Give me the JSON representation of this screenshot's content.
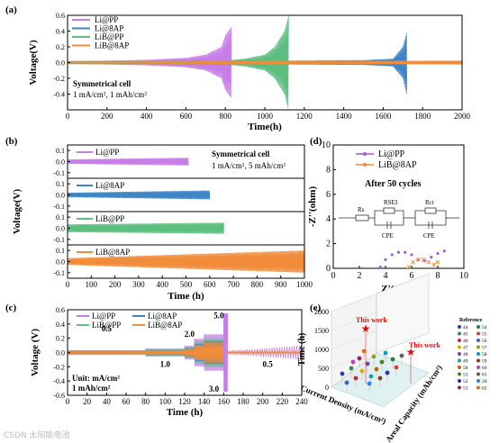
{
  "chart_data": [
    {
      "panel": "(a)",
      "type": "line",
      "title": "",
      "xlabel": "Time(h)",
      "ylabel": "Voltage(V)",
      "xlim": [
        0,
        2000
      ],
      "ylim": [
        -0.6,
        0.6
      ],
      "xticks": [
        0,
        200,
        400,
        600,
        800,
        1000,
        1200,
        1400,
        1600,
        1800,
        2000
      ],
      "yticks": [
        -0.4,
        -0.2,
        0.0,
        0.2,
        0.4,
        0.6
      ],
      "ytick_labels": [
        "-0.4",
        "-0.2",
        "0.0",
        "0.2",
        "0.4",
        "0.6"
      ],
      "annotation": [
        "Symmetrical cell",
        "1 mA/cm², 1 mAh/cm²"
      ],
      "legend_position": "top-left",
      "series": [
        {
          "name": "Li@PP",
          "color": "#c77ee6",
          "x": [
            0,
            200,
            400,
            600,
            700,
            780,
            800,
            830
          ],
          "amplitude": [
            0.02,
            0.025,
            0.035,
            0.06,
            0.1,
            0.2,
            0.35,
            0.45
          ]
        },
        {
          "name": "Li@8AP",
          "color": "#3d85c6",
          "x": [
            0,
            400,
            800,
            1200,
            1500,
            1650,
            1700,
            1720
          ],
          "amplitude": [
            0.015,
            0.015,
            0.02,
            0.025,
            0.03,
            0.05,
            0.2,
            0.4
          ]
        },
        {
          "name": "LiB@PP",
          "color": "#5cbf7f",
          "x": [
            0,
            400,
            800,
            900,
            1000,
            1050,
            1100,
            1120
          ],
          "amplitude": [
            0.015,
            0.015,
            0.025,
            0.05,
            0.1,
            0.2,
            0.4,
            0.6
          ]
        },
        {
          "name": "LiB@8AP",
          "color": "#f08c3a",
          "x": [
            0,
            500,
            1000,
            1500,
            2000
          ],
          "amplitude": [
            0.012,
            0.015,
            0.018,
            0.02,
            0.025
          ]
        }
      ]
    },
    {
      "panel": "(b)",
      "type": "line",
      "xlabel": "Time (h)",
      "ylabel": "Voltage(V)",
      "xlim": [
        0,
        1000
      ],
      "xticks": [
        0,
        100,
        200,
        300,
        400,
        500,
        600,
        700,
        800,
        900,
        1000
      ],
      "yticks": [
        0.1,
        0.0,
        -0.1
      ],
      "ytick_labels": [
        "0.1",
        "0.0",
        "-0.1"
      ],
      "annotation": [
        "Symmetrical cell",
        "1 mA/cm², 5 mAh/cm²"
      ],
      "subpanels": [
        {
          "name": "Li@PP",
          "color": "#c77ee6",
          "end": 510,
          "amp_start": 0.02,
          "amp_end": 0.035
        },
        {
          "name": "Li@8AP",
          "color": "#3d85c6",
          "end": 600,
          "amp_start": 0.02,
          "amp_end": 0.04
        },
        {
          "name": "LiB@PP",
          "color": "#5cbf7f",
          "end": 660,
          "amp_start": 0.035,
          "amp_end": 0.05
        },
        {
          "name": "LiB@8AP",
          "color": "#f08c3a",
          "end": 1000,
          "amp_start": 0.03,
          "amp_end": 0.1
        }
      ]
    },
    {
      "panel": "(c)",
      "type": "line",
      "xlabel": "Time (h)",
      "ylabel": "Voltage (V)",
      "xlim": [
        0,
        240
      ],
      "ylim": [
        -0.6,
        0.6
      ],
      "xticks": [
        0,
        20,
        40,
        60,
        80,
        100,
        120,
        140,
        160,
        180,
        200,
        220,
        240
      ],
      "yticks": [
        -0.6,
        -0.4,
        -0.2,
        0.0,
        0.2,
        0.4,
        0.6
      ],
      "ytick_labels": [
        "-0.6",
        "-0.4",
        "-0.2",
        "0.0",
        "0.2",
        "0.4",
        "0.6"
      ],
      "rate_labels": [
        "0.5",
        "1.0",
        "2.0",
        "3.0",
        "5.0",
        "0.5"
      ],
      "annotation": [
        "Unit: mA/cm²",
        "1 mAh/cm²"
      ],
      "legend": [
        "Li@PP",
        "Li@8AP",
        "LiB@PP",
        "LiB@8AP"
      ],
      "series_colors": [
        "#c77ee6",
        "#3d85c6",
        "#5cbf7f",
        "#f08c3a"
      ]
    },
    {
      "panel": "(d)",
      "type": "scatter",
      "xlabel": "Z'(ohm)",
      "ylabel": "-Z''(ohm)",
      "xlim": [
        0,
        10
      ],
      "ylim": [
        0,
        10
      ],
      "xticks": [
        0,
        2,
        4,
        6,
        8,
        10
      ],
      "yticks": [
        0,
        2,
        4,
        6,
        8,
        10
      ],
      "annotation": "After 50 cycles",
      "circuit_labels": [
        "Rs",
        "RSEI",
        "Rct",
        "CPE",
        "CPE"
      ],
      "series": [
        {
          "name": "Li@PP",
          "color": "#a05fd6",
          "x": [
            3.6,
            4.0,
            4.5,
            5.0,
            5.5,
            6.0,
            6.5,
            7.0,
            7.5,
            8.0,
            8.5
          ],
          "y": [
            0.1,
            0.7,
            1.1,
            1.3,
            1.3,
            1.1,
            0.7,
            0.6,
            0.9,
            1.2,
            1.4
          ]
        },
        {
          "name": "LiB@8AP",
          "color": "#f08c3a",
          "x": [
            5.8,
            6.1,
            6.5,
            6.9,
            7.3,
            7.7,
            8.0
          ],
          "y": [
            0.1,
            0.5,
            0.7,
            0.7,
            0.5,
            0.3,
            0.5
          ]
        }
      ]
    },
    {
      "panel": "(e)",
      "type": "scatter3d",
      "zlabel": "Time (h)",
      "xlabel": "Current Density (mA/cm²)",
      "ylabel": "Areal Capacity (mAh/cm²)",
      "ztick_labels": [
        "0",
        "500",
        "1000",
        "1500",
        "2000"
      ],
      "ztick_values": [
        0,
        500,
        1000,
        1500,
        2000
      ],
      "highlights": [
        {
          "label": "This work",
          "time": 2000
        },
        {
          "label": "This work",
          "time": 1000
        }
      ],
      "legend_title": "Reference",
      "references": [
        "44",
        "45",
        "46",
        "47",
        "48",
        "49",
        "50",
        "51",
        "52",
        "53",
        "54",
        "55",
        "56",
        "57",
        "58",
        "59",
        "60",
        "61",
        "20",
        "62"
      ],
      "reference_colors": [
        "#1f3fbf",
        "#2e8b57",
        "#cc2244",
        "#e6a800",
        "#7a3db8",
        "#20a0a0",
        "#c86400",
        "#4c7f2a",
        "#3030a0",
        "#a02070",
        "#208040",
        "#d04040",
        "#4060d0",
        "#90a020",
        "#00a0c0",
        "#804020",
        "#c040c0",
        "#606060",
        "#2080ff",
        "#e07020"
      ]
    }
  ],
  "watermark": "CSDN 太阳能电池"
}
